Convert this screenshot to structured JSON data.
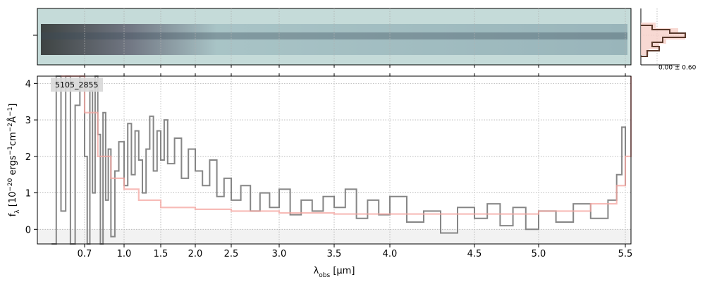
{
  "chart_data": {
    "type": "line",
    "annotation": "5105_2855",
    "stats_label": "0.00 ± 0.60",
    "xlabel": [
      "λ",
      "obs",
      " [μm]"
    ],
    "ylabel": [
      "f",
      "λ",
      " [10",
      "−20",
      " ergs",
      "−1",
      "cm",
      "−2",
      "Å",
      "−1",
      "]"
    ],
    "xlim": [
      0.5,
      5.52
    ],
    "xticks": [
      0.7,
      {
        "value": 1.0,
        "label": "1.0"
      },
      1.5,
      {
        "value": 2.0,
        "label": "2.0"
      },
      2.5,
      {
        "value": 3.0,
        "label": "3.0"
      },
      3.5,
      {
        "value": 4.0,
        "label": "4.0"
      },
      4.5,
      {
        "value": 5.0,
        "label": "5.0"
      },
      5.5
    ],
    "ylim": [
      -0.4,
      4.2
    ],
    "yticks": [
      0,
      1,
      2,
      3,
      4
    ],
    "grid": true,
    "series": [
      {
        "color": "#808080",
        "step": true,
        "x": [
          0.56,
          0.58,
          0.6,
          0.62,
          0.64,
          0.66,
          0.68,
          0.7,
          0.72,
          0.74,
          0.76,
          0.78,
          0.8,
          0.82,
          0.84,
          0.86,
          0.88,
          0.9,
          0.93,
          0.96,
          1.0,
          1.05,
          1.1,
          1.15,
          1.2,
          1.25,
          1.3,
          1.35,
          1.4,
          1.45,
          1.5,
          1.55,
          1.6,
          1.7,
          1.8,
          1.9,
          2.0,
          2.1,
          2.2,
          2.3,
          2.4,
          2.5,
          2.6,
          2.7,
          2.8,
          2.9,
          3.0,
          3.1,
          3.2,
          3.3,
          3.4,
          3.5,
          3.6,
          3.7,
          3.8,
          3.9,
          4.0,
          4.1,
          4.2,
          4.3,
          4.4,
          4.5,
          4.6,
          4.7,
          4.8,
          4.9,
          5.0,
          5.1,
          5.2,
          5.3,
          5.4,
          5.45,
          5.48,
          5.5
        ],
        "values": [
          -0.4,
          4.2,
          0.5,
          4.2,
          -0.4,
          3.4,
          4.2,
          2.0,
          -0.4,
          3.8,
          1.0,
          4.2,
          2.6,
          -0.4,
          3.2,
          0.8,
          2.2,
          -0.2,
          1.6,
          2.4,
          1.2,
          2.9,
          1.5,
          2.7,
          1.9,
          1.0,
          2.2,
          3.1,
          1.6,
          2.7,
          1.9,
          3.0,
          1.8,
          2.5,
          1.4,
          2.2,
          1.6,
          1.2,
          1.9,
          0.9,
          1.4,
          0.8,
          1.2,
          0.5,
          1.0,
          0.6,
          1.1,
          0.4,
          0.8,
          0.5,
          0.9,
          0.6,
          1.1,
          0.3,
          0.8,
          0.4,
          0.9,
          0.2,
          0.5,
          -0.1,
          0.6,
          0.3,
          0.7,
          0.1,
          0.6,
          0.0,
          0.5,
          0.2,
          0.7,
          0.3,
          0.8,
          1.5,
          2.8,
          1.2
        ]
      },
      {
        "color": "#f4a6a0",
        "step": true,
        "x": [
          0.6,
          0.7,
          0.8,
          0.9,
          1.0,
          1.2,
          1.5,
          2.0,
          2.5,
          3.0,
          3.5,
          4.0,
          4.5,
          5.0,
          5.3,
          5.45,
          5.5,
          5.52
        ],
        "values": [
          4.2,
          3.2,
          2.0,
          1.4,
          1.1,
          0.8,
          0.6,
          0.55,
          0.5,
          0.45,
          0.42,
          0.42,
          0.42,
          0.5,
          0.7,
          1.2,
          2.0,
          4.2
        ]
      }
    ]
  }
}
